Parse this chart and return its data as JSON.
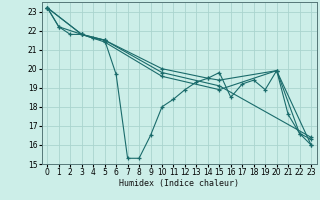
{
  "xlabel": "Humidex (Indice chaleur)",
  "bg_color": "#cceee8",
  "grid_color": "#aad4ce",
  "line_color": "#1a6b6b",
  "marker": "+",
  "xlim": [
    -0.5,
    23.5
  ],
  "ylim": [
    15,
    23.5
  ],
  "yticks": [
    15,
    16,
    17,
    18,
    19,
    20,
    21,
    22,
    23
  ],
  "xticks": [
    0,
    1,
    2,
    3,
    4,
    5,
    6,
    7,
    8,
    9,
    10,
    11,
    12,
    13,
    14,
    15,
    16,
    17,
    18,
    19,
    20,
    21,
    22,
    23
  ],
  "series1": [
    [
      0,
      23.2
    ],
    [
      1,
      22.2
    ],
    [
      2,
      21.8
    ],
    [
      3,
      21.8
    ],
    [
      4,
      21.6
    ],
    [
      5,
      21.5
    ],
    [
      6,
      19.7
    ],
    [
      7,
      15.3
    ],
    [
      8,
      15.3
    ],
    [
      9,
      16.5
    ],
    [
      10,
      18.0
    ],
    [
      11,
      18.4
    ],
    [
      12,
      18.9
    ],
    [
      13,
      19.3
    ],
    [
      14,
      19.5
    ],
    [
      15,
      19.8
    ],
    [
      16,
      18.5
    ],
    [
      17,
      19.2
    ],
    [
      18,
      19.4
    ],
    [
      19,
      18.9
    ],
    [
      20,
      19.9
    ],
    [
      21,
      17.6
    ],
    [
      22,
      16.6
    ],
    [
      23,
      16.0
    ]
  ],
  "series2": [
    [
      0,
      23.2
    ],
    [
      1,
      22.2
    ],
    [
      3,
      21.8
    ],
    [
      5,
      21.5
    ],
    [
      10,
      20.0
    ],
    [
      14,
      19.5
    ],
    [
      15,
      19.4
    ],
    [
      20,
      19.9
    ],
    [
      22,
      16.6
    ],
    [
      23,
      16.3
    ]
  ],
  "series3": [
    [
      0,
      23.2
    ],
    [
      3,
      21.8
    ],
    [
      5,
      21.5
    ],
    [
      10,
      19.8
    ],
    [
      15,
      19.1
    ],
    [
      23,
      16.4
    ]
  ],
  "series4": [
    [
      0,
      23.2
    ],
    [
      3,
      21.8
    ],
    [
      5,
      21.4
    ],
    [
      10,
      19.6
    ],
    [
      15,
      18.9
    ],
    [
      20,
      19.9
    ],
    [
      23,
      16.0
    ]
  ]
}
